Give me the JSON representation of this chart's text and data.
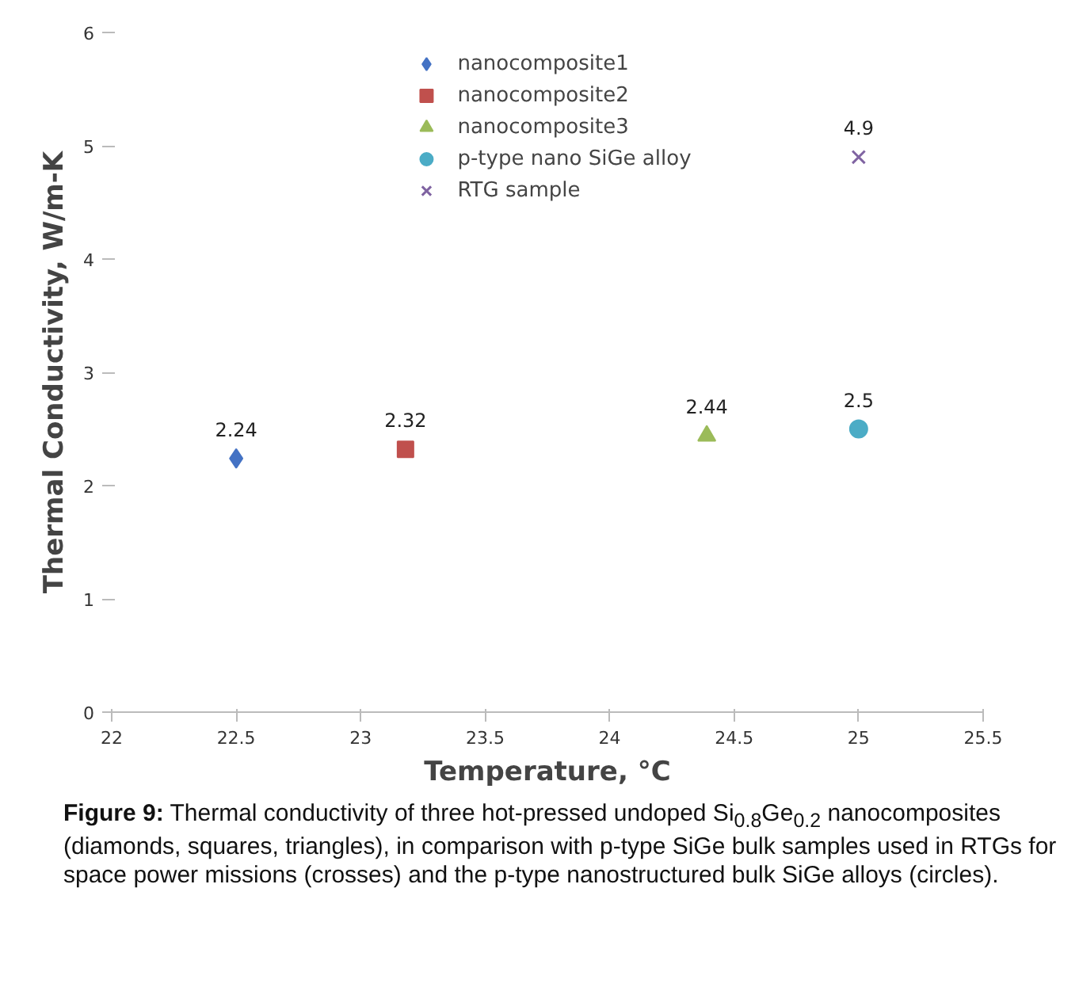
{
  "chart_data": {
    "type": "scatter",
    "xlabel": "Temperature, °C",
    "ylabel": "Thermal Conductivity, W/m-K",
    "series": [
      {
        "name": "nanocomposite1",
        "color": "#4472c4",
        "marker": "diamond",
        "x": [
          22.5
        ],
        "values": [
          2.24
        ]
      },
      {
        "name": "nanocomposite2",
        "color": "#c0504d",
        "marker": "square",
        "x": [
          23.18
        ],
        "values": [
          2.32
        ]
      },
      {
        "name": "nanocomposite3",
        "color": "#9bbb59",
        "marker": "triangle",
        "x": [
          24.39
        ],
        "values": [
          2.44
        ]
      },
      {
        "name": "p-type nano SiGe alloy",
        "color": "#4bacc6",
        "marker": "circle",
        "x": [
          25.0
        ],
        "values": [
          2.5
        ]
      },
      {
        "name": "RTG sample",
        "color": "#8064a2",
        "marker": "cross",
        "x": [
          25.0
        ],
        "values": [
          4.9
        ]
      }
    ],
    "xlim": [
      22,
      25.5
    ],
    "xticks": [
      22,
      22.5,
      23,
      23.5,
      24,
      24.5,
      25,
      25.5
    ],
    "ylim": [
      0,
      6
    ],
    "yticks": [
      0,
      1,
      2,
      3,
      4,
      5,
      6
    ],
    "grid": false,
    "legend": "top",
    "data_labels": true,
    "annotations": [
      "Figure 9: Thermal conductivity of three hot-pressed undoped Si$_{0.8}$Ge$_{0.2}$ nanocomposites (diamonds, squares, triangles), in comparison with p-type SiGe bulk samples used in RTGs for space power missions (crosses) and the p-type nanostructured bulk SiGe alloys (circles)."
    ]
  }
}
